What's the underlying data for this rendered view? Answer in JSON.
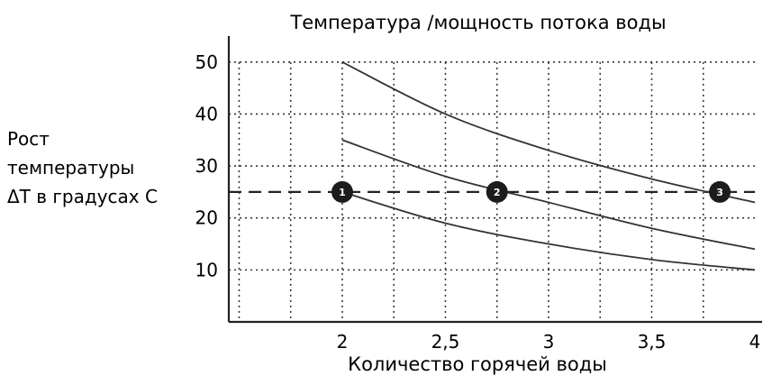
{
  "chart_data": {
    "type": "line",
    "title": "Температура /мощность потока воды",
    "xlabel": "Количество горячей воды",
    "ylabel_lines": [
      "Рост",
      "температуры",
      "ΔT в градусах С"
    ],
    "xlim": [
      1.45,
      4
    ],
    "ylim": [
      0,
      55
    ],
    "x_ticks": [
      2,
      2.5,
      3,
      3.5,
      4
    ],
    "x_tick_labels": [
      "2",
      "2,5",
      "3",
      "3,5",
      "4"
    ],
    "y_ticks": [
      10,
      20,
      30,
      40,
      50
    ],
    "y_tick_labels": [
      "10",
      "20",
      "30",
      "40",
      "50"
    ],
    "grid": "dotted",
    "series": [
      {
        "points": [
          [
            2,
            50
          ],
          [
            2.5,
            40
          ],
          [
            3,
            33
          ],
          [
            3.5,
            27.5
          ],
          [
            4,
            23
          ]
        ]
      },
      {
        "points": [
          [
            2,
            35
          ],
          [
            2.5,
            28
          ],
          [
            3,
            23
          ],
          [
            3.5,
            18
          ],
          [
            4,
            14
          ]
        ]
      },
      {
        "points": [
          [
            2,
            25
          ],
          [
            2.5,
            19
          ],
          [
            3,
            15
          ],
          [
            3.5,
            12
          ],
          [
            4,
            10
          ]
        ]
      }
    ],
    "reference_line": {
      "y": 25,
      "style": "dashed"
    },
    "markers": [
      {
        "label": "1",
        "x": 2,
        "y": 25
      },
      {
        "label": "2",
        "x": 2.75,
        "y": 25
      },
      {
        "label": "3",
        "x": 3.83,
        "y": 25
      }
    ]
  }
}
